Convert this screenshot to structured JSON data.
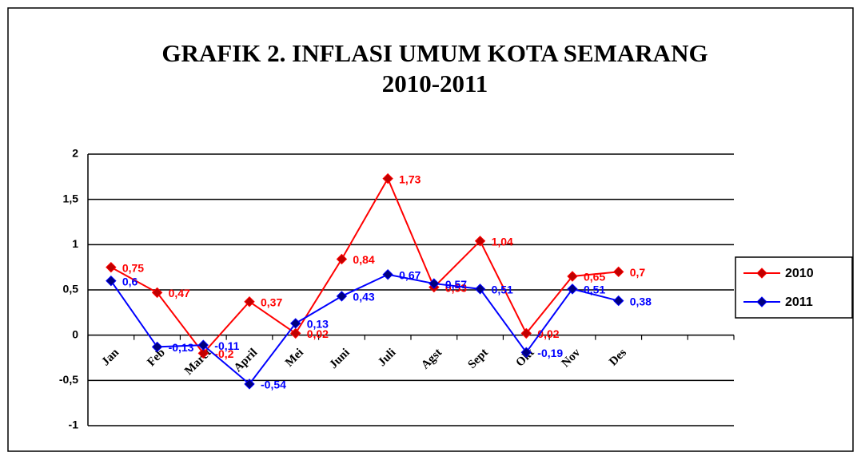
{
  "chart_data": {
    "type": "line",
    "title": [
      "GRAFIK 2. INFLASI UMUM KOTA SEMARANG",
      "2010-2011"
    ],
    "categories": [
      "Jan",
      "Feb",
      "Maret",
      "April",
      "Mei",
      "Juni",
      "Juli",
      "Agst",
      "Sept",
      "Okt",
      "Nov",
      "Des",
      null,
      null
    ],
    "series": [
      {
        "name": "2010",
        "color": "#ff0000",
        "marker_color": "#c00000",
        "values": [
          0.75,
          0.47,
          -0.2,
          0.37,
          0.02,
          0.84,
          1.73,
          0.53,
          1.04,
          0.02,
          0.65,
          0.7,
          null,
          null
        ],
        "value_labels": [
          "0,75",
          "0,47",
          "-0,2",
          "0,37",
          "0,02",
          "0,84",
          "1,73",
          "0,53",
          "1,04",
          "0,02",
          "0,65",
          "0,7",
          null,
          null
        ]
      },
      {
        "name": "2011",
        "color": "#0000ff",
        "marker_color": "#000080",
        "values": [
          0.6,
          -0.13,
          -0.11,
          -0.54,
          0.13,
          0.43,
          0.67,
          0.57,
          0.51,
          -0.19,
          0.51,
          0.38,
          null,
          null
        ],
        "value_labels": [
          "0,6",
          "-0,13",
          "-0,11",
          "-0,54",
          "0,13",
          "0,43",
          "0,67",
          "0,57",
          "0,51",
          "-0,19",
          "0,51",
          "0,38",
          null,
          null
        ]
      }
    ],
    "ylim": [
      -1,
      2
    ],
    "yticks": [
      {
        "value": -1,
        "label": "-1"
      },
      {
        "value": -0.5,
        "label": "-0,5"
      },
      0,
      {
        "value": 0.5,
        "label": "0,5"
      },
      1,
      {
        "value": 1.5,
        "label": "1,5"
      },
      2
    ],
    "grid": true,
    "legend": "right"
  }
}
